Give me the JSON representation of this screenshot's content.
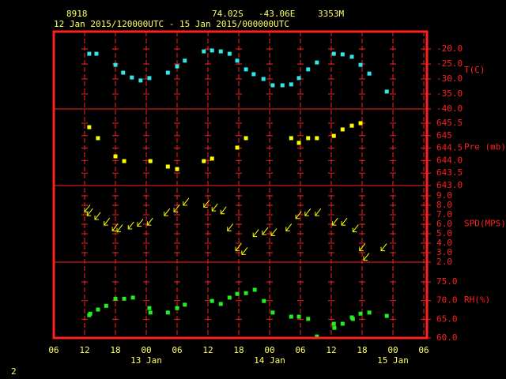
{
  "header": {
    "station": "8918",
    "latitude": "74.02S",
    "longitude": "-43.06E",
    "elevation": "3353M",
    "period": "12 Jan 2015/120000UTC - 15 Jan 2015/000000UTC"
  },
  "x_axis": {
    "xlim": [
      0,
      72
    ],
    "xticks": [
      {
        "value": 0,
        "label": "06"
      },
      {
        "value": 6,
        "label": "12"
      },
      {
        "value": 12,
        "label": "18"
      },
      {
        "value": 18,
        "label": "00"
      },
      {
        "value": 24,
        "label": "06"
      },
      {
        "value": 30,
        "label": "12"
      },
      {
        "value": 36,
        "label": "18"
      },
      {
        "value": 42,
        "label": "00"
      },
      {
        "value": 48,
        "label": "06"
      },
      {
        "value": 54,
        "label": "12"
      },
      {
        "value": 60,
        "label": "18"
      },
      {
        "value": 66,
        "label": "00"
      },
      {
        "value": 72,
        "label": "06"
      }
    ],
    "date_labels": [
      {
        "value": 18,
        "label": "13 Jan"
      },
      {
        "value": 42,
        "label": "14 Jan"
      },
      {
        "value": 66,
        "label": "15 Jan"
      }
    ]
  },
  "chart_data": [
    {
      "type": "scatter",
      "y_label": "T(C)",
      "color": "#33e6e6",
      "ylim": [
        -40,
        -14.2
      ],
      "yticks": [
        {
          "value": -20,
          "label": "-20.0"
        },
        {
          "value": -25,
          "label": "-25.0"
        },
        {
          "value": -30,
          "label": "-30.0"
        },
        {
          "value": -35,
          "label": "-35.0"
        },
        {
          "value": -40,
          "label": "-40.0"
        }
      ],
      "x": [
        6.9,
        8.3,
        12,
        13.5,
        15.2,
        16.9,
        18.6,
        22.2,
        24,
        25.5,
        29.2,
        30.8,
        32.5,
        34.2,
        35.7,
        37.4,
        38.9,
        40.8,
        42.6,
        44.5,
        46.2,
        47.7,
        49.5,
        51.2,
        54.5,
        56.2,
        58,
        59.7,
        61.4,
        64.8
      ],
      "values": [
        -21.6,
        -21.6,
        -25.3,
        -27.9,
        -29.5,
        -30.5,
        -29.7,
        -27.9,
        -25.8,
        -23.9,
        -20.8,
        -20.5,
        -20.8,
        -21.6,
        -23.9,
        -26.8,
        -28.4,
        -30,
        -32.1,
        -32.1,
        -31.8,
        -29.7,
        -26.8,
        -24.5,
        -21.6,
        -21.8,
        -22.6,
        -25.3,
        -28.2,
        -34.2
      ]
    },
    {
      "type": "scatter",
      "y_label": "Pre (mb)",
      "color": "#ffff00",
      "ylim": [
        643,
        646.07
      ],
      "yticks": [
        645.5,
        645,
        644.5,
        {
          "value": 644,
          "label": "644.0"
        },
        643.5,
        {
          "value": 643,
          "label": "643.0"
        }
      ],
      "x": [
        6.9,
        8.6,
        12,
        13.7,
        18.8,
        22.2,
        24,
        29.2,
        30.8,
        35.7,
        37.4,
        46.2,
        47.7,
        49.5,
        51.2,
        54.5,
        56.2,
        58,
        59.7
      ],
      "values": [
        645.34,
        644.9,
        644.17,
        643.98,
        643.98,
        643.76,
        643.66,
        643.98,
        644.08,
        644.52,
        644.9,
        644.9,
        644.71,
        644.9,
        644.9,
        644.99,
        645.25,
        645.4,
        645.5
      ]
    },
    {
      "type": "vector",
      "y_label": "SPD(MPS)",
      "color": "#ffff00",
      "ylim": [
        2,
        10.08
      ],
      "yticks": [
        {
          "value": 9,
          "label": "9.0"
        },
        {
          "value": 8,
          "label": "8.0"
        },
        {
          "value": 7,
          "label": "7.0"
        },
        {
          "value": 6,
          "label": "6.0"
        },
        {
          "value": 5,
          "label": "5.0"
        },
        {
          "value": 4,
          "label": "4.0"
        },
        {
          "value": 3,
          "label": "3.0"
        },
        {
          "value": 2,
          "label": "2.0"
        }
      ],
      "x": [
        6,
        6.5,
        8,
        9.8,
        11.4,
        12.3,
        14.5,
        16.3,
        18.2,
        21.5,
        23.4,
        25.2,
        29.2,
        30.8,
        32.5,
        33.8,
        35.4,
        36.6,
        38.8,
        40.6,
        42.3,
        45.2,
        47.1,
        48.9,
        50.9,
        54.2,
        56,
        58.2,
        59.5,
        60.3,
        63.7
      ],
      "values": [
        7.3,
        6.9,
        6.5,
        5.9,
        5.3,
        5.2,
        5.5,
        5.8,
        5.9,
        6.9,
        7.3,
        8,
        7.8,
        7.4,
        7.1,
        5.3,
        3.2,
        2.8,
        4.7,
        4.9,
        4.8,
        5.3,
        6.6,
        6.9,
        6.9,
        5.9,
        5.9,
        5.2,
        3.2,
        2.2,
        3.2
      ]
    },
    {
      "type": "scatter",
      "y_label": "RH(%)",
      "color": "#22ee22",
      "ylim": [
        60,
        80.3
      ],
      "yticks": [
        {
          "value": 75,
          "label": "75.0"
        },
        {
          "value": 70,
          "label": "70.0"
        },
        {
          "value": 65,
          "label": "65.0"
        },
        {
          "value": 60,
          "label": "60.0"
        }
      ],
      "x": [
        6.9,
        7.1,
        8.6,
        10.2,
        12,
        13.7,
        15.4,
        18.6,
        18.8,
        22.2,
        24,
        25.5,
        30.8,
        32.5,
        34.2,
        35.7,
        37.4,
        39.1,
        40.9,
        42.6,
        46.2,
        47.7,
        49.5,
        51.2,
        54.5,
        54.6,
        56.2,
        58,
        58.2,
        59.7,
        61.4,
        64.8
      ],
      "values": [
        66.1,
        66.5,
        67.6,
        68.6,
        70.5,
        70.5,
        70.8,
        68,
        66.8,
        66.8,
        68,
        68.9,
        69.9,
        69.1,
        70.8,
        71.8,
        72,
        72.9,
        69.9,
        66.8,
        65.7,
        65.7,
        65.1,
        60.4,
        63.8,
        62.7,
        63.8,
        65.5,
        65.1,
        66.5,
        66.8,
        65.9
      ]
    }
  ],
  "page_number": "2"
}
